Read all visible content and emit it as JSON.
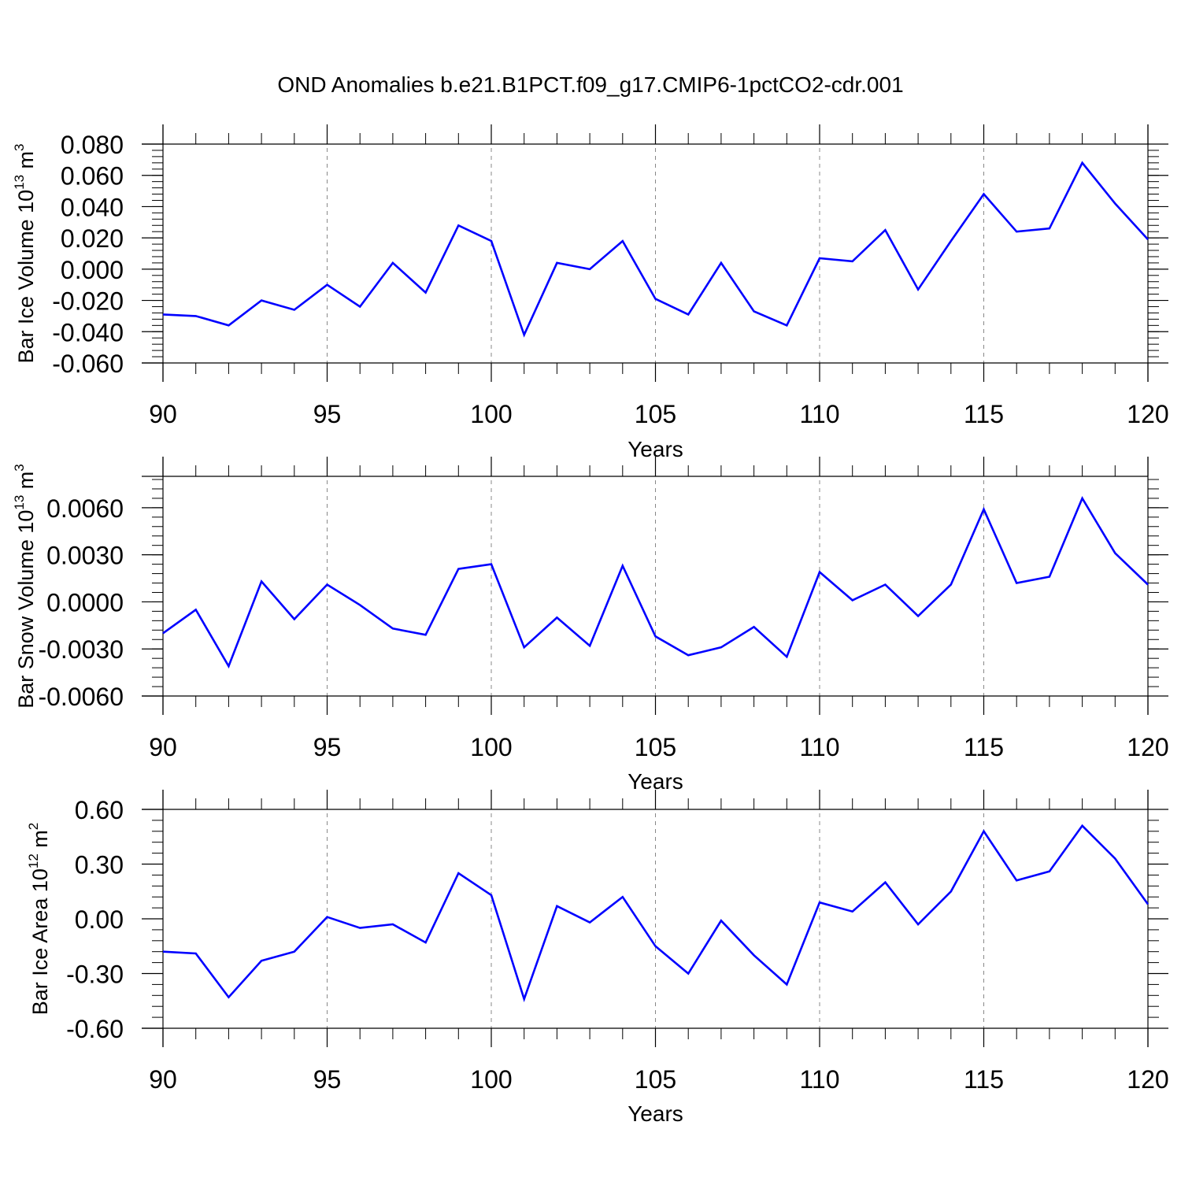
{
  "title": "OND Anomalies b.e21.B1PCT.f09_g17.CMIP6-1pctCO2-cdr.001",
  "chart_data": [
    {
      "type": "line",
      "title": "",
      "ylabel": "Bar Ice Volume 10",
      "ylabel_sup": "13",
      "ylabel_unit": "m",
      "ylabel_unit_sup": "3",
      "xlabel": "Years",
      "xlim": [
        90,
        120
      ],
      "ylim": [
        -0.06,
        0.08
      ],
      "x_ticks": [
        "90",
        "95",
        "100",
        "105",
        "110",
        "115",
        "120"
      ],
      "y_ticks": [
        "-0.060",
        "-0.040",
        "-0.020",
        "0.000",
        "0.020",
        "0.040",
        "0.060",
        "0.080"
      ],
      "y_tick_values": [
        -0.06,
        -0.04,
        -0.02,
        0.0,
        0.02,
        0.04,
        0.06,
        0.08
      ],
      "grid": "vertical dashed at major x ticks",
      "series": [
        {
          "color": "#0000ff",
          "x": [
            90,
            91,
            92,
            93,
            94,
            95,
            96,
            97,
            98,
            99,
            100,
            101,
            102,
            103,
            104,
            105,
            106,
            107,
            108,
            109,
            110,
            111,
            112,
            113,
            114,
            115,
            116,
            117,
            118,
            119,
            120
          ],
          "y": [
            -0.029,
            -0.03,
            -0.036,
            -0.02,
            -0.026,
            -0.01,
            -0.024,
            0.004,
            -0.015,
            0.028,
            0.018,
            -0.042,
            0.004,
            0.0,
            0.018,
            -0.019,
            -0.029,
            0.004,
            -0.027,
            -0.036,
            0.007,
            0.005,
            0.025,
            -0.013,
            0.018,
            0.048,
            0.024,
            0.026,
            0.068,
            0.042,
            0.019
          ]
        }
      ]
    },
    {
      "type": "line",
      "title": "",
      "ylabel": "Bar Snow Volume 10",
      "ylabel_sup": "13",
      "ylabel_unit": "m",
      "ylabel_unit_sup": "3",
      "xlabel": "Years",
      "xlim": [
        90,
        120
      ],
      "ylim": [
        -0.006,
        0.008
      ],
      "x_ticks": [
        "90",
        "95",
        "100",
        "105",
        "110",
        "115",
        "120"
      ],
      "y_ticks": [
        "-0.0060",
        "-0.0030",
        "0.0000",
        "0.0030",
        "0.0060"
      ],
      "y_tick_values": [
        -0.006,
        -0.003,
        0.0,
        0.003,
        0.006
      ],
      "grid": "vertical dashed at major x ticks",
      "series": [
        {
          "color": "#0000ff",
          "x": [
            90,
            91,
            92,
            93,
            94,
            95,
            96,
            97,
            98,
            99,
            100,
            101,
            102,
            103,
            104,
            105,
            106,
            107,
            108,
            109,
            110,
            111,
            112,
            113,
            114,
            115,
            116,
            117,
            118,
            119,
            120
          ],
          "y": [
            -0.002,
            -0.0005,
            -0.0041,
            0.0013,
            -0.0011,
            0.0011,
            -0.0002,
            -0.0017,
            -0.0021,
            0.0021,
            0.0024,
            -0.0029,
            -0.001,
            -0.0028,
            0.0023,
            -0.0022,
            -0.0034,
            -0.0029,
            -0.0016,
            -0.0035,
            0.0019,
            0.0001,
            0.0011,
            -0.0009,
            0.0011,
            0.0059,
            0.0012,
            0.0016,
            0.0066,
            0.0031,
            0.0011
          ]
        }
      ]
    },
    {
      "type": "line",
      "title": "",
      "ylabel": "Bar Ice Area 10",
      "ylabel_sup": "12",
      "ylabel_unit": "m",
      "ylabel_unit_sup": "2",
      "xlabel": "Years",
      "xlim": [
        90,
        120
      ],
      "ylim": [
        -0.6,
        0.6
      ],
      "x_ticks": [
        "90",
        "95",
        "100",
        "105",
        "110",
        "115",
        "120"
      ],
      "y_ticks": [
        "-0.60",
        "-0.30",
        "0.00",
        "0.30",
        "0.60"
      ],
      "y_tick_values": [
        -0.6,
        -0.3,
        0.0,
        0.3,
        0.6
      ],
      "grid": "vertical dashed at major x ticks",
      "series": [
        {
          "color": "#0000ff",
          "x": [
            90,
            91,
            92,
            93,
            94,
            95,
            96,
            97,
            98,
            99,
            100,
            101,
            102,
            103,
            104,
            105,
            106,
            107,
            108,
            109,
            110,
            111,
            112,
            113,
            114,
            115,
            116,
            117,
            118,
            119,
            120
          ],
          "y": [
            -0.18,
            -0.19,
            -0.43,
            -0.23,
            -0.18,
            0.01,
            -0.05,
            -0.03,
            -0.13,
            0.25,
            0.13,
            -0.44,
            0.07,
            -0.02,
            0.12,
            -0.15,
            -0.3,
            -0.01,
            -0.2,
            -0.36,
            0.09,
            0.04,
            0.2,
            -0.03,
            0.15,
            0.48,
            0.21,
            0.26,
            0.51,
            0.33,
            0.08
          ]
        }
      ]
    }
  ]
}
